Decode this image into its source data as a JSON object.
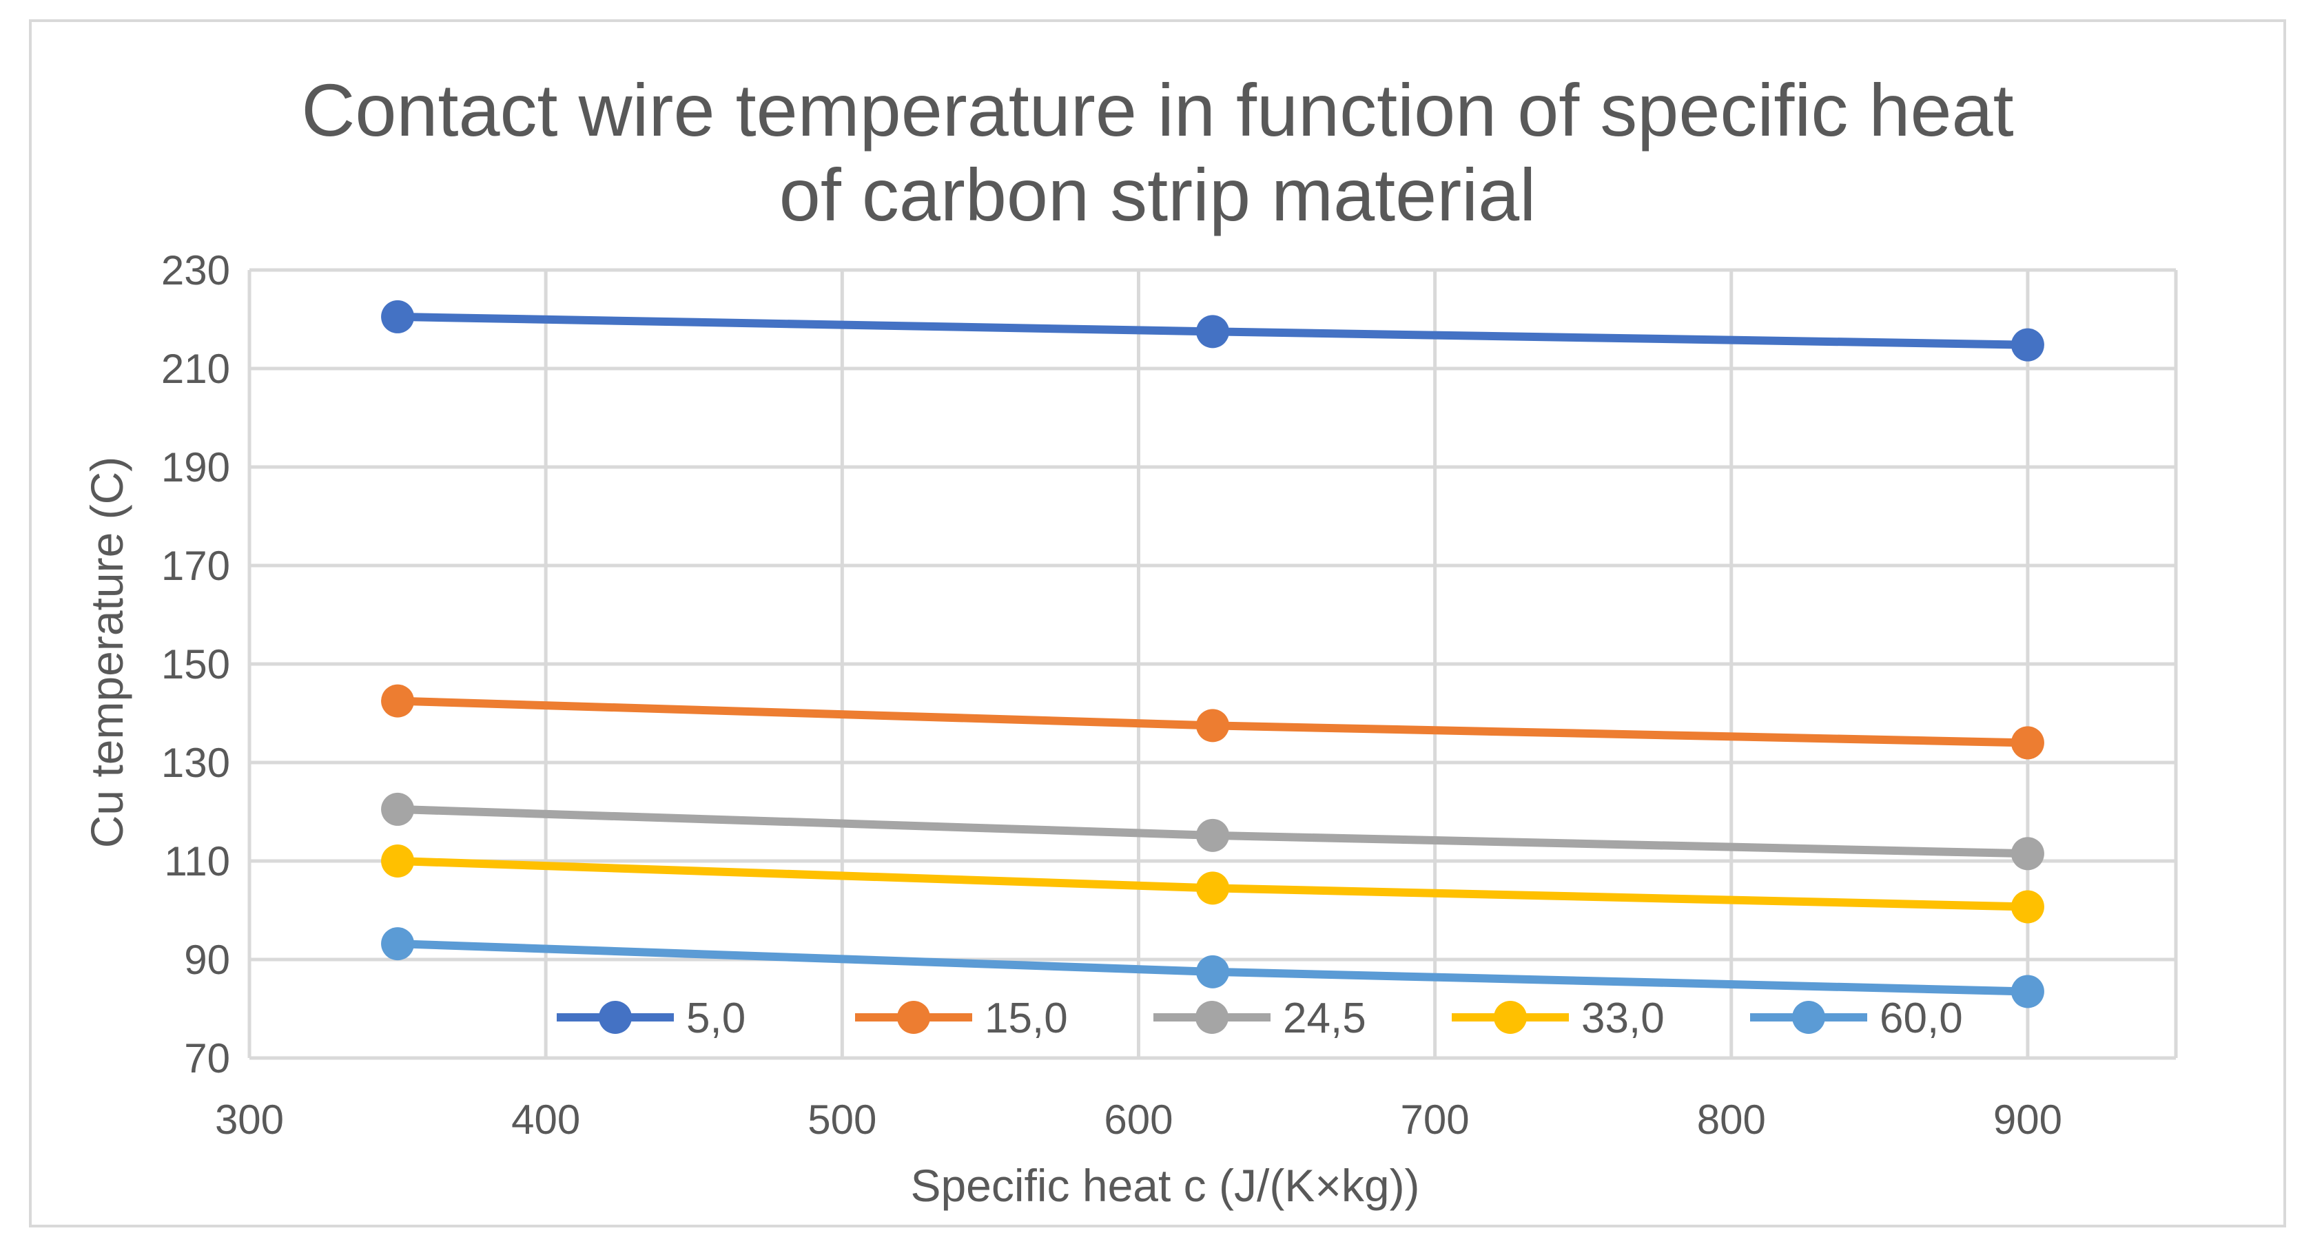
{
  "chart_data": {
    "type": "line",
    "title": [
      "Contact wire temperature in function of specific heat",
      "of carbon strip material"
    ],
    "xlabel": "Specific heat c (J/(K×kg))",
    "ylabel": "Cu temperature (C)",
    "xlim": [
      300,
      950
    ],
    "ylim": [
      70,
      230
    ],
    "xticks": [
      300,
      400,
      500,
      600,
      700,
      800,
      900
    ],
    "yticks": [
      70,
      90,
      110,
      130,
      150,
      170,
      190,
      210,
      230
    ],
    "x": [
      350,
      625,
      900
    ],
    "grid": true,
    "legend_position": "bottom",
    "series": [
      {
        "name": "5,0",
        "values": [
          220.5,
          217.5,
          214.8
        ],
        "color": "#4472c4"
      },
      {
        "name": "15,0",
        "values": [
          142.5,
          137.5,
          134.0
        ],
        "color": "#ed7d31"
      },
      {
        "name": "24,5",
        "values": [
          120.5,
          115.2,
          111.5
        ],
        "color": "#a5a5a5"
      },
      {
        "name": "33,0",
        "values": [
          110.0,
          104.5,
          100.7
        ],
        "color": "#ffc000"
      },
      {
        "name": "60,0",
        "values": [
          93.2,
          87.5,
          83.5
        ],
        "color": "#5b9bd5"
      }
    ]
  }
}
